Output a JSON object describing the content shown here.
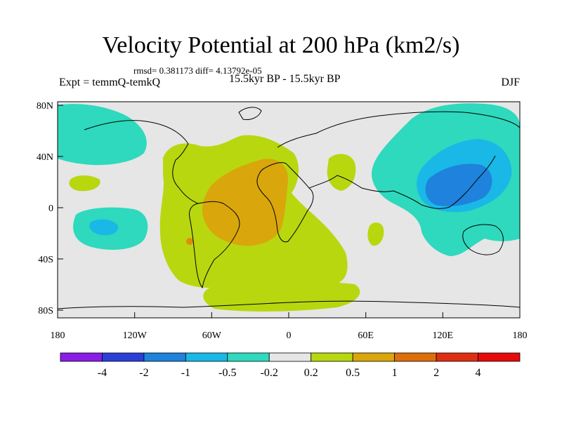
{
  "title": "Velocity Potential at 200 hPa (km2/s)",
  "stats": "rmsd= 0.381173 diff= 4.13792e-05",
  "left_label": "Expt = temmQ-temkQ",
  "center_label": "15.5kyr BP - 15.5kyr BP",
  "right_label": "DJF",
  "y_ticks": [
    "80N",
    "40N",
    "0",
    "40S",
    "80S"
  ],
  "x_ticks": [
    "180",
    "120W",
    "60W",
    "0",
    "60E",
    "120E",
    "180"
  ],
  "colorbar": {
    "labels": [
      "-4",
      "-2",
      "-1",
      "-0.5",
      "-0.2",
      "0.2",
      "0.5",
      "1",
      "2",
      "4"
    ],
    "colors": [
      "#8a1ee6",
      "#2a3fd8",
      "#1f82dc",
      "#19b8e6",
      "#2ed9bd",
      "#e6e6e6",
      "#b8d70f",
      "#d9a60c",
      "#de6e0a",
      "#e02e12",
      "#e60a0a"
    ]
  },
  "palette": {
    "neutral": "#e6e6e6",
    "pos_weak": "#b8d70f",
    "pos_mid": "#d9a60c",
    "pos_strong": "#de6e0a",
    "neg_weak": "#2ed9bd",
    "neg_mid": "#19b8e6",
    "neg_strong": "#1f82dc"
  }
}
